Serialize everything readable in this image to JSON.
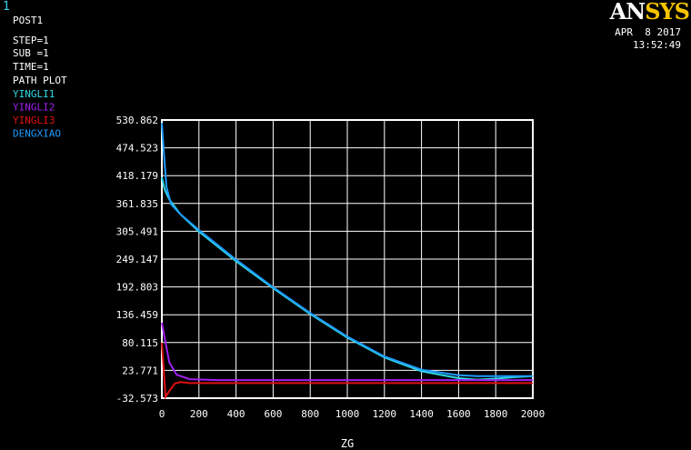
{
  "window_number": "1",
  "brand": {
    "white": "AN",
    "yellow": "SYS"
  },
  "date": "APR  8 2017",
  "time": "13:52:49",
  "info": {
    "post": "POST1",
    "step": "STEP=1",
    "sub": "SUB =1",
    "time_line": "TIME=1",
    "plot_type": "PATH PLOT"
  },
  "colors": {
    "YINGLI1": "#2fd8e4",
    "YINGLI2": "#a020f0",
    "YINGLI3": "#e01010",
    "DENGXIAO": "#1e9bff",
    "frame": "#ffffff",
    "grid": "#ffffff"
  },
  "chart_data": {
    "type": "line",
    "xlabel": "ZG",
    "xlim": [
      0,
      2000
    ],
    "ylim": [
      -32.573,
      530.862
    ],
    "x_ticks": [
      "0",
      "200",
      "400",
      "600",
      "800",
      "1000",
      "1200",
      "1400",
      "1600",
      "1800",
      "2000"
    ],
    "y_ticks": [
      "530.862",
      "474.523",
      "418.179",
      "361.835",
      "305.491",
      "249.147",
      "192.803",
      "136.459",
      "80.115",
      "23.771",
      "-32.573"
    ],
    "grid": true,
    "legend_position": "top-left",
    "series": [
      {
        "name": "YINGLI1",
        "color": "#2fd8e4",
        "x": [
          0,
          15,
          40,
          100,
          200,
          400,
          600,
          800,
          1000,
          1200,
          1400,
          1600,
          1700,
          1800,
          1900,
          2000
        ],
        "y": [
          415,
          390,
          370,
          340,
          305,
          245,
          190,
          138,
          90,
          50,
          22,
          8,
          5,
          7,
          10,
          12
        ]
      },
      {
        "name": "DENGXIAO",
        "color": "#1e9bff",
        "x": [
          0,
          10,
          25,
          50,
          100,
          200,
          400,
          600,
          800,
          1000,
          1200,
          1400,
          1600,
          1700,
          1800,
          1900,
          2000
        ],
        "y": [
          525,
          470,
          395,
          360,
          340,
          308,
          248,
          192,
          140,
          92,
          52,
          25,
          14,
          12,
          12,
          12,
          12
        ]
      },
      {
        "name": "YINGLI2",
        "color": "#a020f0",
        "x": [
          0,
          15,
          40,
          80,
          150,
          300,
          600,
          1000,
          1400,
          1800,
          2000
        ],
        "y": [
          120,
          90,
          40,
          15,
          6,
          4,
          4,
          4,
          4,
          4,
          4
        ]
      },
      {
        "name": "YINGLI3",
        "color": "#e01010",
        "x": [
          0,
          20,
          40,
          70,
          100,
          150,
          300,
          600,
          1000,
          1400,
          1800,
          2000
        ],
        "y": [
          80,
          -30,
          -18,
          -3,
          0,
          -2,
          -2,
          -2,
          -2,
          -2,
          -2,
          -2
        ]
      }
    ]
  }
}
